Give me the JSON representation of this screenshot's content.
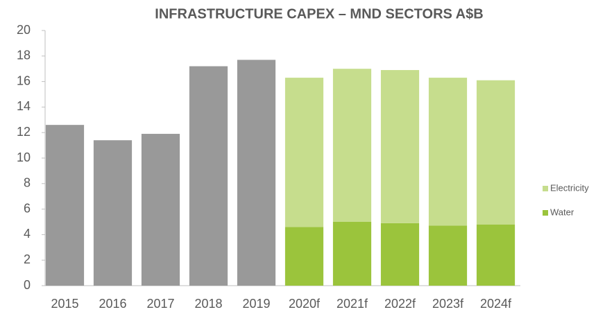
{
  "chart_data": {
    "type": "stacked_bar",
    "title": "INFRASTRUCTURE CAPEX – MND SECTORS A$B",
    "categories": [
      "2015",
      "2016",
      "2017",
      "2018",
      "2019",
      "2020f",
      "2021f",
      "2022f",
      "2023f",
      "2024f"
    ],
    "series": [
      {
        "color": "#999999",
        "values": [
          12.6,
          11.4,
          11.9,
          17.2,
          17.7,
          null,
          null,
          null,
          null,
          null
        ]
      },
      {
        "name": "Water",
        "color": "#9bc43c",
        "values": [
          null,
          null,
          null,
          null,
          null,
          4.6,
          5.0,
          4.9,
          4.7,
          4.8
        ]
      },
      {
        "name": "Electricity",
        "color": "#c6dd8d",
        "values": [
          null,
          null,
          null,
          null,
          null,
          11.7,
          12.0,
          12.0,
          11.6,
          11.3
        ]
      }
    ],
    "ylim": [
      0,
      20
    ],
    "yticks": [
      0,
      2,
      4,
      6,
      8,
      10,
      12,
      14,
      16,
      18,
      20
    ],
    "grid": false,
    "legend": "right"
  }
}
